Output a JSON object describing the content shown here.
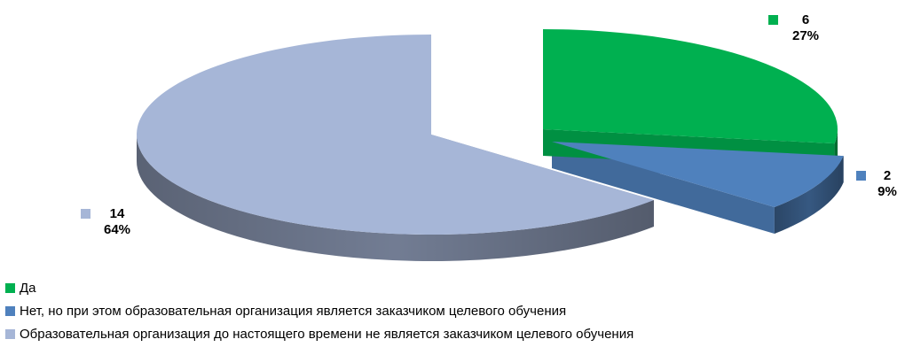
{
  "chart_data": {
    "type": "pie",
    "slices": [
      {
        "label": "Да",
        "value": 6,
        "percent": "27%",
        "color": "#00B050"
      },
      {
        "label": "Нет, но при этом образовательная организация является заказчиком целевого обучения",
        "value": 2,
        "percent": "9%",
        "color": "#4F81BD"
      },
      {
        "label": "Образовательная организация до настоящего времени не является заказчиком целевого обучения",
        "value": 14,
        "percent": "64%",
        "color": "#A6B6D7"
      }
    ],
    "style": "3d-exploded",
    "legend": "bottom-left"
  }
}
